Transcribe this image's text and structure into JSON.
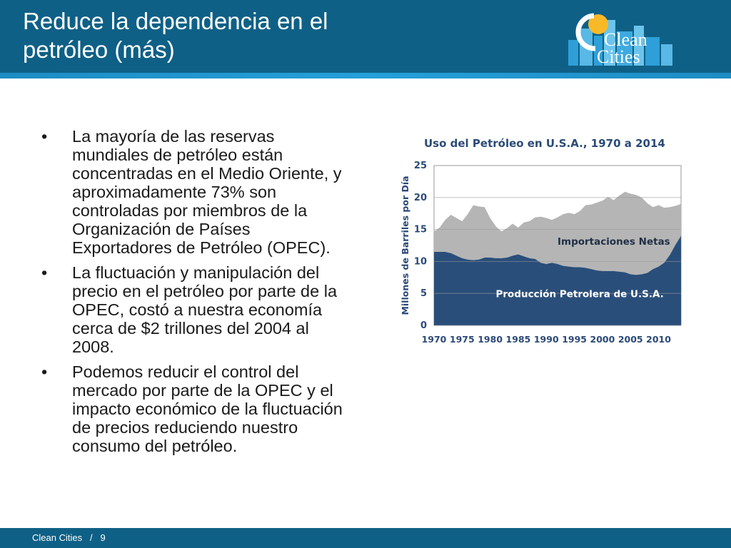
{
  "header": {
    "title_line1": "Reduce la dependencia en el",
    "title_line2": "petróleo (más)",
    "logo_top": "Clean",
    "logo_bottom": "Cities",
    "logo_icon": "sun-city-logo-icon"
  },
  "bullets": [
    {
      "marker": "•",
      "text": "La mayoría de las reservas mundiales de petróleo están concentradas en el Medio Oriente, y aproximadamente 73% son controladas por miembros de la Organización de Países Exportadores de Petróleo (OPEC)."
    },
    {
      "marker": "•",
      "text": "La fluctuación y manipulación del precio en el petróleo por parte de la OPEC, costó a nuestra economía cerca de $2 trillones del 2004 al 2008."
    },
    {
      "marker": "•",
      "text": "Podemos reducir el control del mercado por parte de la OPEC y el impacto económico de la fluctuación de precios reduciendo nuestro consumo del petróleo."
    }
  ],
  "footer": {
    "brand": "Clean Cities",
    "separator": "/",
    "page": "9"
  },
  "colors": {
    "header_bg": "#0f6086",
    "production": "#2a4e7a",
    "imports": "#b5b5b5",
    "title_text": "#2b4a78"
  },
  "chart_data": {
    "type": "area",
    "title": "Uso del Petróleo en U.S.A., 1970 a 2014",
    "ylabel": "Millones de Barriles por Día",
    "xlabel": "",
    "ylim": [
      0,
      25
    ],
    "xlim": [
      1970,
      2014
    ],
    "yticks": [
      "0",
      "5",
      "10",
      "15",
      "20",
      "25"
    ],
    "xticks": [
      "1970",
      "1975",
      "1980",
      "1985",
      "1990",
      "1995",
      "2000",
      "2005",
      "2010"
    ],
    "grid": true,
    "stacked": true,
    "x": [
      1970,
      1971,
      1972,
      1973,
      1974,
      1975,
      1976,
      1977,
      1978,
      1979,
      1980,
      1981,
      1982,
      1983,
      1984,
      1985,
      1986,
      1987,
      1988,
      1989,
      1990,
      1991,
      1992,
      1993,
      1994,
      1995,
      1996,
      1997,
      1998,
      1999,
      2000,
      2001,
      2002,
      2003,
      2004,
      2005,
      2006,
      2007,
      2008,
      2009,
      2010,
      2011,
      2012,
      2013,
      2014
    ],
    "series": [
      {
        "name": "Producción Petrolera de U.S.A.",
        "values": [
          11.5,
          11.5,
          11.5,
          11.3,
          10.9,
          10.5,
          10.3,
          10.2,
          10.3,
          10.6,
          10.6,
          10.5,
          10.5,
          10.6,
          10.9,
          11.1,
          10.8,
          10.5,
          10.4,
          9.8,
          9.6,
          9.8,
          9.6,
          9.3,
          9.2,
          9.1,
          9.1,
          9.0,
          8.8,
          8.6,
          8.5,
          8.5,
          8.5,
          8.4,
          8.3,
          8.0,
          7.9,
          8.0,
          8.2,
          8.8,
          9.2,
          9.8,
          11.0,
          12.6,
          14.0
        ]
      },
      {
        "name": "Importaciones Netas",
        "values": [
          3.2,
          3.8,
          5.0,
          6.0,
          5.9,
          5.8,
          7.1,
          8.6,
          8.3,
          7.9,
          6.2,
          5.0,
          4.2,
          4.6,
          5.0,
          4.2,
          5.3,
          5.8,
          6.5,
          7.2,
          7.2,
          6.7,
          7.3,
          8.1,
          8.4,
          8.3,
          8.8,
          9.8,
          10.1,
          10.6,
          11.0,
          11.6,
          11.1,
          11.9,
          12.6,
          12.6,
          12.5,
          12.0,
          10.9,
          9.7,
          9.6,
          8.6,
          7.5,
          6.1,
          5.0
        ]
      }
    ],
    "annotations": [
      "Importaciones Netas",
      "Producción Petrolera de U.S.A."
    ]
  }
}
